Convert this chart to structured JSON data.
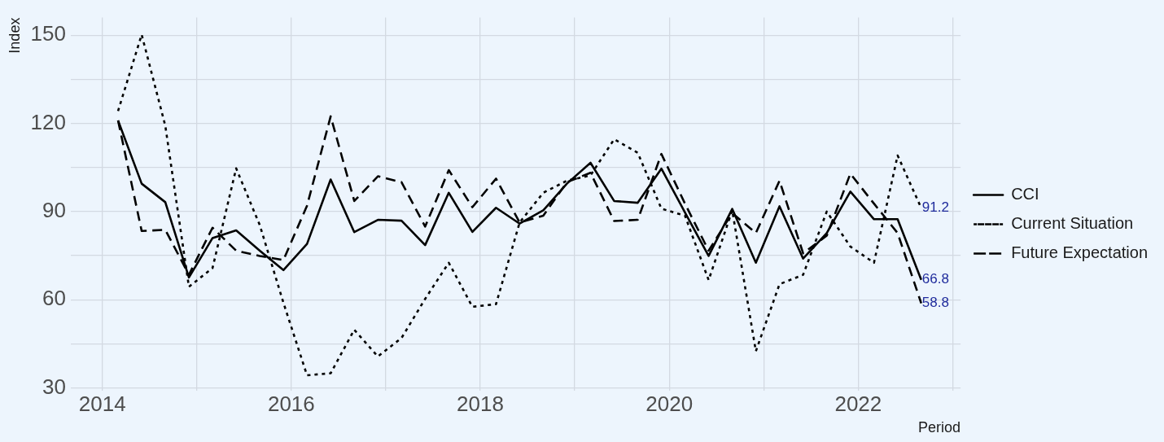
{
  "chart_data": {
    "type": "line",
    "xlabel": "Period",
    "ylabel": "Index",
    "x": [
      "2014-03",
      "2014-06",
      "2014-09",
      "2014-12",
      "2015-03",
      "2015-06",
      "2015-09",
      "2015-12",
      "2016-03",
      "2016-06",
      "2016-09",
      "2016-12",
      "2017-03",
      "2017-06",
      "2017-09",
      "2017-12",
      "2018-03",
      "2018-06",
      "2018-09",
      "2018-12",
      "2019-03",
      "2019-06",
      "2019-09",
      "2019-12",
      "2020-03",
      "2020-06",
      "2020-09",
      "2020-12",
      "2021-03",
      "2021-06",
      "2021-09",
      "2021-12",
      "2022-03",
      "2022-06",
      "2022-09"
    ],
    "series": [
      {
        "name": "CCI",
        "color": "#000000",
        "line_style": "solid",
        "values": [
          121.0,
          99.5,
          93.2,
          67.6,
          81.0,
          83.6,
          76.7,
          70.1,
          79.0,
          100.9,
          83.0,
          87.2,
          86.9,
          78.6,
          96.4,
          83.1,
          91.3,
          85.9,
          90.4,
          99.5,
          106.6,
          93.6,
          93.0,
          104.6,
          89.7,
          74.9,
          90.9,
          72.6,
          91.8,
          74.0,
          82.7,
          96.8,
          87.4,
          87.4,
          66.8
        ],
        "value_labels": [
          null,
          null,
          null,
          null,
          null,
          null,
          null,
          null,
          null,
          null,
          null,
          null,
          null,
          null,
          null,
          null,
          null,
          null,
          null,
          null,
          null,
          null,
          null,
          null,
          null,
          null,
          null,
          null,
          null,
          null,
          null,
          null,
          null,
          null,
          "66.8"
        ]
      },
      {
        "name": "Current Situation",
        "color": "#000000",
        "line_style": "dotted",
        "values": [
          124.2,
          150.2,
          119.2,
          64.4,
          70.8,
          104.7,
          85.4,
          59.0,
          34.3,
          35.0,
          49.8,
          40.7,
          47.0,
          60.3,
          72.6,
          57.6,
          58.5,
          86.3,
          96.4,
          100.5,
          102.3,
          114.6,
          110.0,
          91.0,
          88.6,
          66.7,
          90.4,
          42.5,
          65.3,
          68.5,
          90.0,
          78.1,
          72.6,
          109.1,
          91.2
        ],
        "value_labels": [
          null,
          null,
          null,
          null,
          null,
          null,
          null,
          null,
          null,
          null,
          null,
          null,
          null,
          null,
          null,
          null,
          null,
          null,
          null,
          null,
          null,
          null,
          null,
          null,
          null,
          null,
          null,
          null,
          null,
          null,
          null,
          null,
          null,
          null,
          "91.2"
        ]
      },
      {
        "name": "Future Expectation",
        "color": "#000000",
        "line_style": "dashed",
        "values": [
          121.0,
          83.4,
          83.8,
          68.5,
          84.5,
          76.7,
          74.9,
          73.5,
          92.0,
          122.4,
          93.6,
          102.0,
          100.0,
          84.9,
          104.1,
          91.5,
          101.2,
          86.3,
          88.6,
          100.0,
          103.2,
          86.8,
          87.2,
          109.6,
          92.7,
          76.7,
          89.5,
          82.7,
          100.5,
          75.8,
          81.8,
          102.9,
          92.7,
          82.7,
          58.8
        ],
        "value_labels": [
          null,
          null,
          null,
          null,
          null,
          null,
          null,
          null,
          null,
          null,
          null,
          null,
          null,
          null,
          null,
          null,
          null,
          null,
          null,
          null,
          null,
          null,
          null,
          null,
          null,
          null,
          null,
          null,
          null,
          null,
          null,
          null,
          null,
          null,
          "58.8"
        ]
      }
    ],
    "xlim": [
      "2013-09",
      "2023-02"
    ],
    "xticks": [
      "2014",
      {
        "value": "2015",
        "label": null
      },
      "2016",
      {
        "value": "2017",
        "label": null
      },
      "2018",
      {
        "value": "2019",
        "label": null
      },
      "2020",
      {
        "value": "2021",
        "label": null
      },
      "2022",
      {
        "value": "2023",
        "label": null
      }
    ],
    "ylim": [
      29,
      156
    ],
    "yticks": [
      30,
      {
        "value": 45,
        "label": null
      },
      60,
      {
        "value": 75,
        "label": null
      },
      90,
      {
        "value": 105,
        "label": null
      },
      120,
      {
        "value": 135,
        "label": null
      },
      150
    ],
    "grid": true,
    "legend": "right",
    "marker": "none"
  }
}
